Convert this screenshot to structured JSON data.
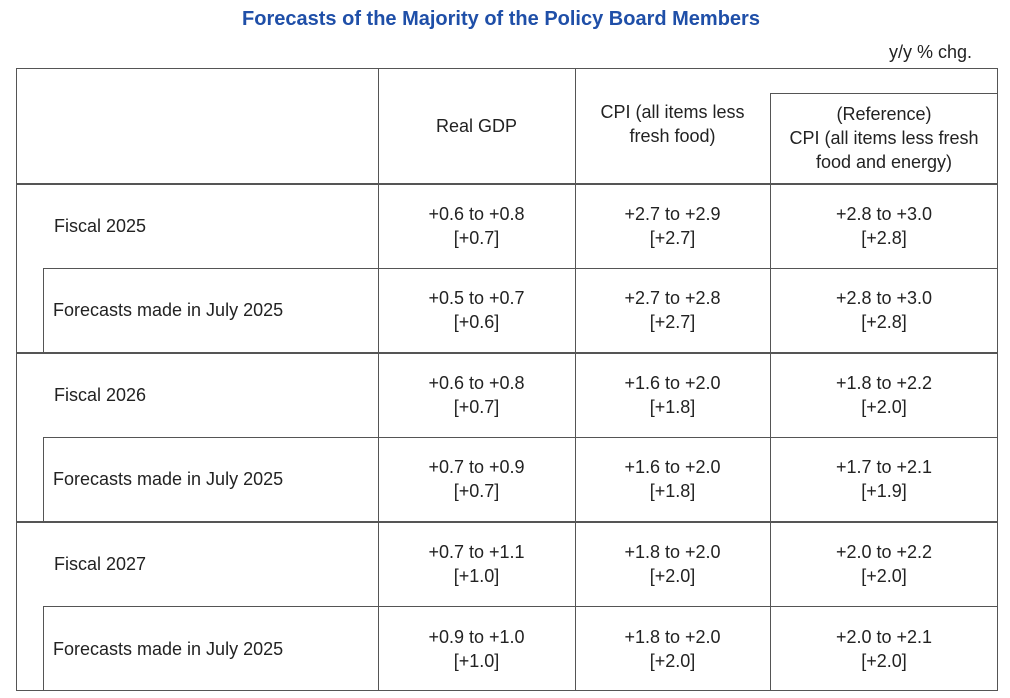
{
  "title": "Forecasts of the Majority of the Policy Board Members",
  "unit": "y/y % chg.",
  "colors": {
    "title": "#1f4fa8"
  },
  "table": {
    "headers": [
      "Real GDP",
      "CPI (all items less fresh food)",
      "(Reference)",
      "CPI (all items less fresh food and energy)"
    ],
    "rows": [
      {
        "label": "Fiscal 2025",
        "gdp": "+0.6 to +0.8",
        "gdp_median": "[+0.7]",
        "cpi": "+2.7 to +2.9",
        "cpi_median": "[+2.7]",
        "core": "+2.8 to +3.0",
        "core_median": "[+2.8]"
      },
      {
        "label": "Forecasts made in July 2025",
        "gdp": "+0.5 to +0.7",
        "gdp_median": "[+0.6]",
        "cpi": "+2.7 to +2.8",
        "cpi_median": "[+2.7]",
        "core": "+2.8 to +3.0",
        "core_median": "[+2.8]"
      },
      {
        "label": "Fiscal 2026",
        "gdp": "+0.6 to +0.8",
        "gdp_median": "[+0.7]",
        "cpi": "+1.6 to +2.0",
        "cpi_median": "[+1.8]",
        "core": "+1.8 to +2.2",
        "core_median": "[+2.0]"
      },
      {
        "label": "Forecasts made in July 2025",
        "gdp": "+0.7 to +0.9",
        "gdp_median": "[+0.7]",
        "cpi": "+1.6 to +2.0",
        "cpi_median": "[+1.8]",
        "core": "+1.7 to +2.1",
        "core_median": "[+1.9]"
      },
      {
        "label": "Fiscal 2027",
        "gdp": "+0.7 to +1.1",
        "gdp_median": "[+1.0]",
        "cpi": "+1.8 to +2.0",
        "cpi_median": "[+2.0]",
        "core": "+2.0 to +2.2",
        "core_median": "[+2.0]"
      },
      {
        "label": "Forecasts made in July 2025",
        "gdp": "+0.9 to +1.0",
        "gdp_median": "[+1.0]",
        "cpi": "+1.8 to +2.0",
        "cpi_median": "[+2.0]",
        "core": "+2.0 to +2.1",
        "core_median": "[+2.0]"
      }
    ]
  }
}
